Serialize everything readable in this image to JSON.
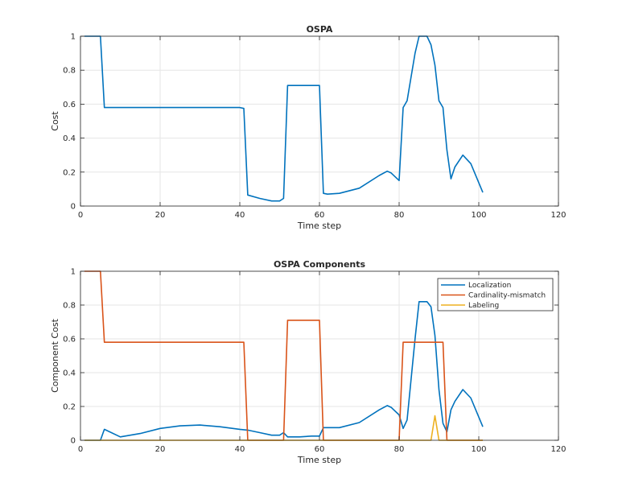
{
  "chart_data": [
    {
      "type": "line",
      "title": "OSPA",
      "xlabel": "Time step",
      "ylabel": "Cost",
      "xlim": [
        0,
        120
      ],
      "ylim": [
        0,
        1
      ],
      "xticks": [
        0,
        20,
        40,
        60,
        80,
        100,
        120
      ],
      "yticks": [
        0,
        0.2,
        0.4,
        0.6,
        0.8,
        1
      ],
      "grid": true,
      "legend": null,
      "colors": [
        "#0072BD"
      ],
      "series": [
        {
          "x": [
            1,
            5,
            6,
            20,
            30,
            40,
            41,
            42,
            45,
            48,
            50,
            51,
            52,
            55,
            58,
            60,
            61,
            62,
            65,
            70,
            75,
            77,
            78,
            80,
            81,
            82,
            84,
            85,
            87,
            88,
            89,
            90,
            91,
            92,
            93,
            94,
            96,
            98,
            101
          ],
          "values": [
            1,
            1,
            0.58,
            0.58,
            0.58,
            0.58,
            0.575,
            0.065,
            0.045,
            0.03,
            0.03,
            0.045,
            0.71,
            0.71,
            0.71,
            0.71,
            0.075,
            0.07,
            0.075,
            0.105,
            0.18,
            0.205,
            0.195,
            0.15,
            0.58,
            0.62,
            0.9,
            1,
            1,
            0.95,
            0.83,
            0.62,
            0.58,
            0.33,
            0.16,
            0.23,
            0.3,
            0.25,
            0.08
          ]
        }
      ]
    },
    {
      "type": "line",
      "title": "OSPA Components",
      "xlabel": "Time step",
      "ylabel": "Component Cost",
      "xlim": [
        0,
        120
      ],
      "ylim": [
        0,
        1
      ],
      "xticks": [
        0,
        20,
        40,
        60,
        80,
        100,
        120
      ],
      "yticks": [
        0,
        0.2,
        0.4,
        0.6,
        0.8,
        1
      ],
      "grid": true,
      "legend": "top-right",
      "series": [
        {
          "name": "Localization",
          "color": "#0072BD",
          "x": [
            1,
            5,
            6,
            10,
            15,
            20,
            25,
            30,
            35,
            40,
            42,
            45,
            48,
            50,
            51,
            52,
            55,
            58,
            60,
            61,
            65,
            70,
            75,
            77,
            78,
            80,
            81,
            82,
            84,
            85,
            87,
            88,
            89,
            90,
            91,
            92,
            93,
            94,
            96,
            98,
            101
          ],
          "values": [
            0,
            0,
            0.065,
            0.02,
            0.04,
            0.07,
            0.085,
            0.09,
            0.08,
            0.065,
            0.06,
            0.045,
            0.03,
            0.03,
            0.045,
            0.02,
            0.02,
            0.025,
            0.025,
            0.075,
            0.075,
            0.105,
            0.18,
            0.205,
            0.195,
            0.15,
            0.07,
            0.12,
            0.6,
            0.82,
            0.82,
            0.79,
            0.62,
            0.3,
            0.1,
            0.05,
            0.18,
            0.23,
            0.3,
            0.25,
            0.08
          ]
        },
        {
          "name": "Cardinality-mismatch",
          "color": "#D95319",
          "x": [
            1,
            5,
            6,
            20,
            41,
            42,
            51,
            52,
            55,
            60,
            61,
            80,
            81,
            90,
            91,
            92,
            101
          ],
          "values": [
            1,
            1,
            0.58,
            0.58,
            0.58,
            0,
            0,
            0.71,
            0.71,
            0.71,
            0,
            0,
            0.58,
            0.58,
            0.58,
            0,
            0
          ]
        },
        {
          "name": "Labeling",
          "color": "#EDB120",
          "x": [
            1,
            88,
            89,
            90,
            101
          ],
          "values": [
            0,
            0,
            0.145,
            0,
            0
          ]
        }
      ]
    }
  ]
}
